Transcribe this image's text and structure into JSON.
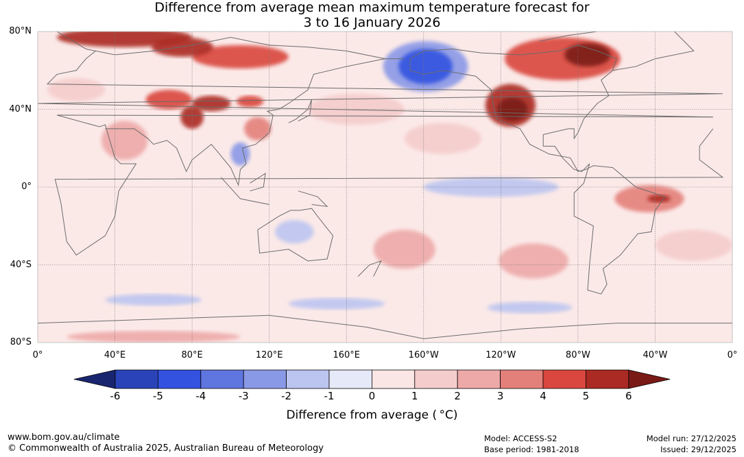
{
  "title": {
    "line1": "Difference from average mean maximum temperature forecast for",
    "line2": "3 to 16 January 2026"
  },
  "map": {
    "lat_labels": [
      "80°N",
      "40°N",
      "0°",
      "40°S",
      "80°S"
    ],
    "lat_values": [
      80,
      40,
      0,
      -40,
      -80
    ],
    "lon_labels": [
      "0°",
      "40°E",
      "80°E",
      "120°E",
      "160°E",
      "160°W",
      "120°W",
      "80°W",
      "40°W",
      "0°"
    ],
    "lon_values": [
      0,
      40,
      80,
      120,
      160,
      200,
      240,
      280,
      320,
      360
    ],
    "lon_range": [
      0,
      360
    ],
    "lat_range": [
      -80,
      80
    ],
    "anomaly_regions": [
      {
        "name": "northern russia warm",
        "lon": 45,
        "lat": 77,
        "rx": 35,
        "ry": 5,
        "value": 5
      },
      {
        "name": "west siberia warm",
        "lon": 75,
        "lat": 72,
        "rx": 16,
        "ry": 5,
        "value": 5
      },
      {
        "name": "central siberia warm",
        "lon": 105,
        "lat": 67,
        "rx": 25,
        "ry": 6,
        "value": 4
      },
      {
        "name": "kazakhstan warm",
        "lon": 68,
        "lat": 45,
        "rx": 12,
        "ry": 5,
        "value": 4
      },
      {
        "name": "mongolia warm",
        "lon": 90,
        "lat": 43,
        "rx": 10,
        "ry": 4,
        "value": 5
      },
      {
        "name": "northern china warm",
        "lon": 110,
        "lat": 44,
        "rx": 7,
        "ry": 3,
        "value": 4
      },
      {
        "name": "west china warm",
        "lon": 80,
        "lat": 36,
        "rx": 6,
        "ry": 6,
        "value": 5
      },
      {
        "name": "china warm",
        "lon": 114,
        "lat": 30,
        "rx": 7,
        "ry": 6,
        "value": 3
      },
      {
        "name": "arabia warm",
        "lon": 45,
        "lat": 24,
        "rx": 12,
        "ry": 10,
        "value": 2
      },
      {
        "name": "alaska cold",
        "lon": 201,
        "lat": 62,
        "rx": 14,
        "ry": 9,
        "value": -4
      },
      {
        "name": "alaska cool halo",
        "lon": 201,
        "lat": 62,
        "rx": 22,
        "ry": 13,
        "value": -2
      },
      {
        "name": "western usa warm",
        "lon": 245,
        "lat": 42,
        "rx": 13,
        "ry": 11,
        "value": 5
      },
      {
        "name": "western usa core",
        "lon": 246,
        "lat": 40,
        "rx": 8,
        "ry": 6,
        "value": 6
      },
      {
        "name": "canada warm",
        "lon": 272,
        "lat": 66,
        "rx": 30,
        "ry": 11,
        "value": 4
      },
      {
        "name": "hudson core",
        "lon": 285,
        "lat": 68,
        "rx": 12,
        "ry": 6,
        "value": 6
      },
      {
        "name": "south america warm",
        "lon": 317,
        "lat": -6,
        "rx": 18,
        "ry": 7,
        "value": 3
      },
      {
        "name": "brazil core",
        "lon": 322,
        "lat": -6,
        "rx": 6,
        "ry": 2,
        "value": 5
      },
      {
        "name": "sw pacific warm",
        "lon": 190,
        "lat": -32,
        "rx": 16,
        "ry": 10,
        "value": 2
      },
      {
        "name": "se pacific warm",
        "lon": 257,
        "lat": -38,
        "rx": 18,
        "ry": 9,
        "value": 2
      },
      {
        "name": "north pacific warm",
        "lon": 165,
        "lat": 40,
        "rx": 25,
        "ry": 8,
        "value": 1
      },
      {
        "name": "tropical pacific cool",
        "lon": 235,
        "lat": 0,
        "rx": 35,
        "ry": 5,
        "value": -1
      },
      {
        "name": "se asia cool",
        "lon": 105,
        "lat": 17,
        "rx": 5,
        "ry": 6,
        "value": -2
      },
      {
        "name": "australia cool",
        "lon": 133,
        "lat": -23,
        "rx": 10,
        "ry": 6,
        "value": -1
      },
      {
        "name": "southern ocean cool a",
        "lon": 155,
        "lat": -60,
        "rx": 25,
        "ry": 3,
        "value": -1
      },
      {
        "name": "southern ocean cool b",
        "lon": 60,
        "lat": -58,
        "rx": 25,
        "ry": 3,
        "value": -1
      },
      {
        "name": "southern ocean cool c",
        "lon": 255,
        "lat": -62,
        "rx": 22,
        "ry": 3,
        "value": -1
      },
      {
        "name": "antarctic margin warm",
        "lon": 60,
        "lat": -77,
        "rx": 45,
        "ry": 3,
        "value": 2
      },
      {
        "name": "east pacific warm",
        "lon": 210,
        "lat": 25,
        "rx": 20,
        "ry": 8,
        "value": 1
      },
      {
        "name": "europe warm",
        "lon": 20,
        "lat": 50,
        "rx": 15,
        "ry": 6,
        "value": 1
      },
      {
        "name": "south atlantic warm",
        "lon": 340,
        "lat": -30,
        "rx": 20,
        "ry": 8,
        "value": 1
      }
    ]
  },
  "colorbar": {
    "labels": [
      "-6",
      "-5",
      "-4",
      "-3",
      "-2",
      "-1",
      "0",
      "1",
      "2",
      "3",
      "4",
      "5",
      "6"
    ],
    "colors": [
      "#1a2570",
      "#2a43b8",
      "#3352e0",
      "#5f75e0",
      "#8a99e6",
      "#bcc5f0",
      "#e6e9f8",
      "#fbe6e6",
      "#f5cccc",
      "#eda9a8",
      "#e4807a",
      "#d9473e",
      "#ab2a23",
      "#7a1a16"
    ],
    "title": "Difference from average (°C)",
    "title_display": "Difference from average ( °C)"
  },
  "footer": {
    "url": "www.bom.gov.au/climate",
    "copyright": "© Commonwealth of Australia 2025, Australian Bureau of Meteorology",
    "model": "Model: ACCESS-S2",
    "base_period": "Base period: 1981-2018",
    "model_run": "Model run: 27/12/2025",
    "issued": "Issued: 29/12/2025"
  }
}
